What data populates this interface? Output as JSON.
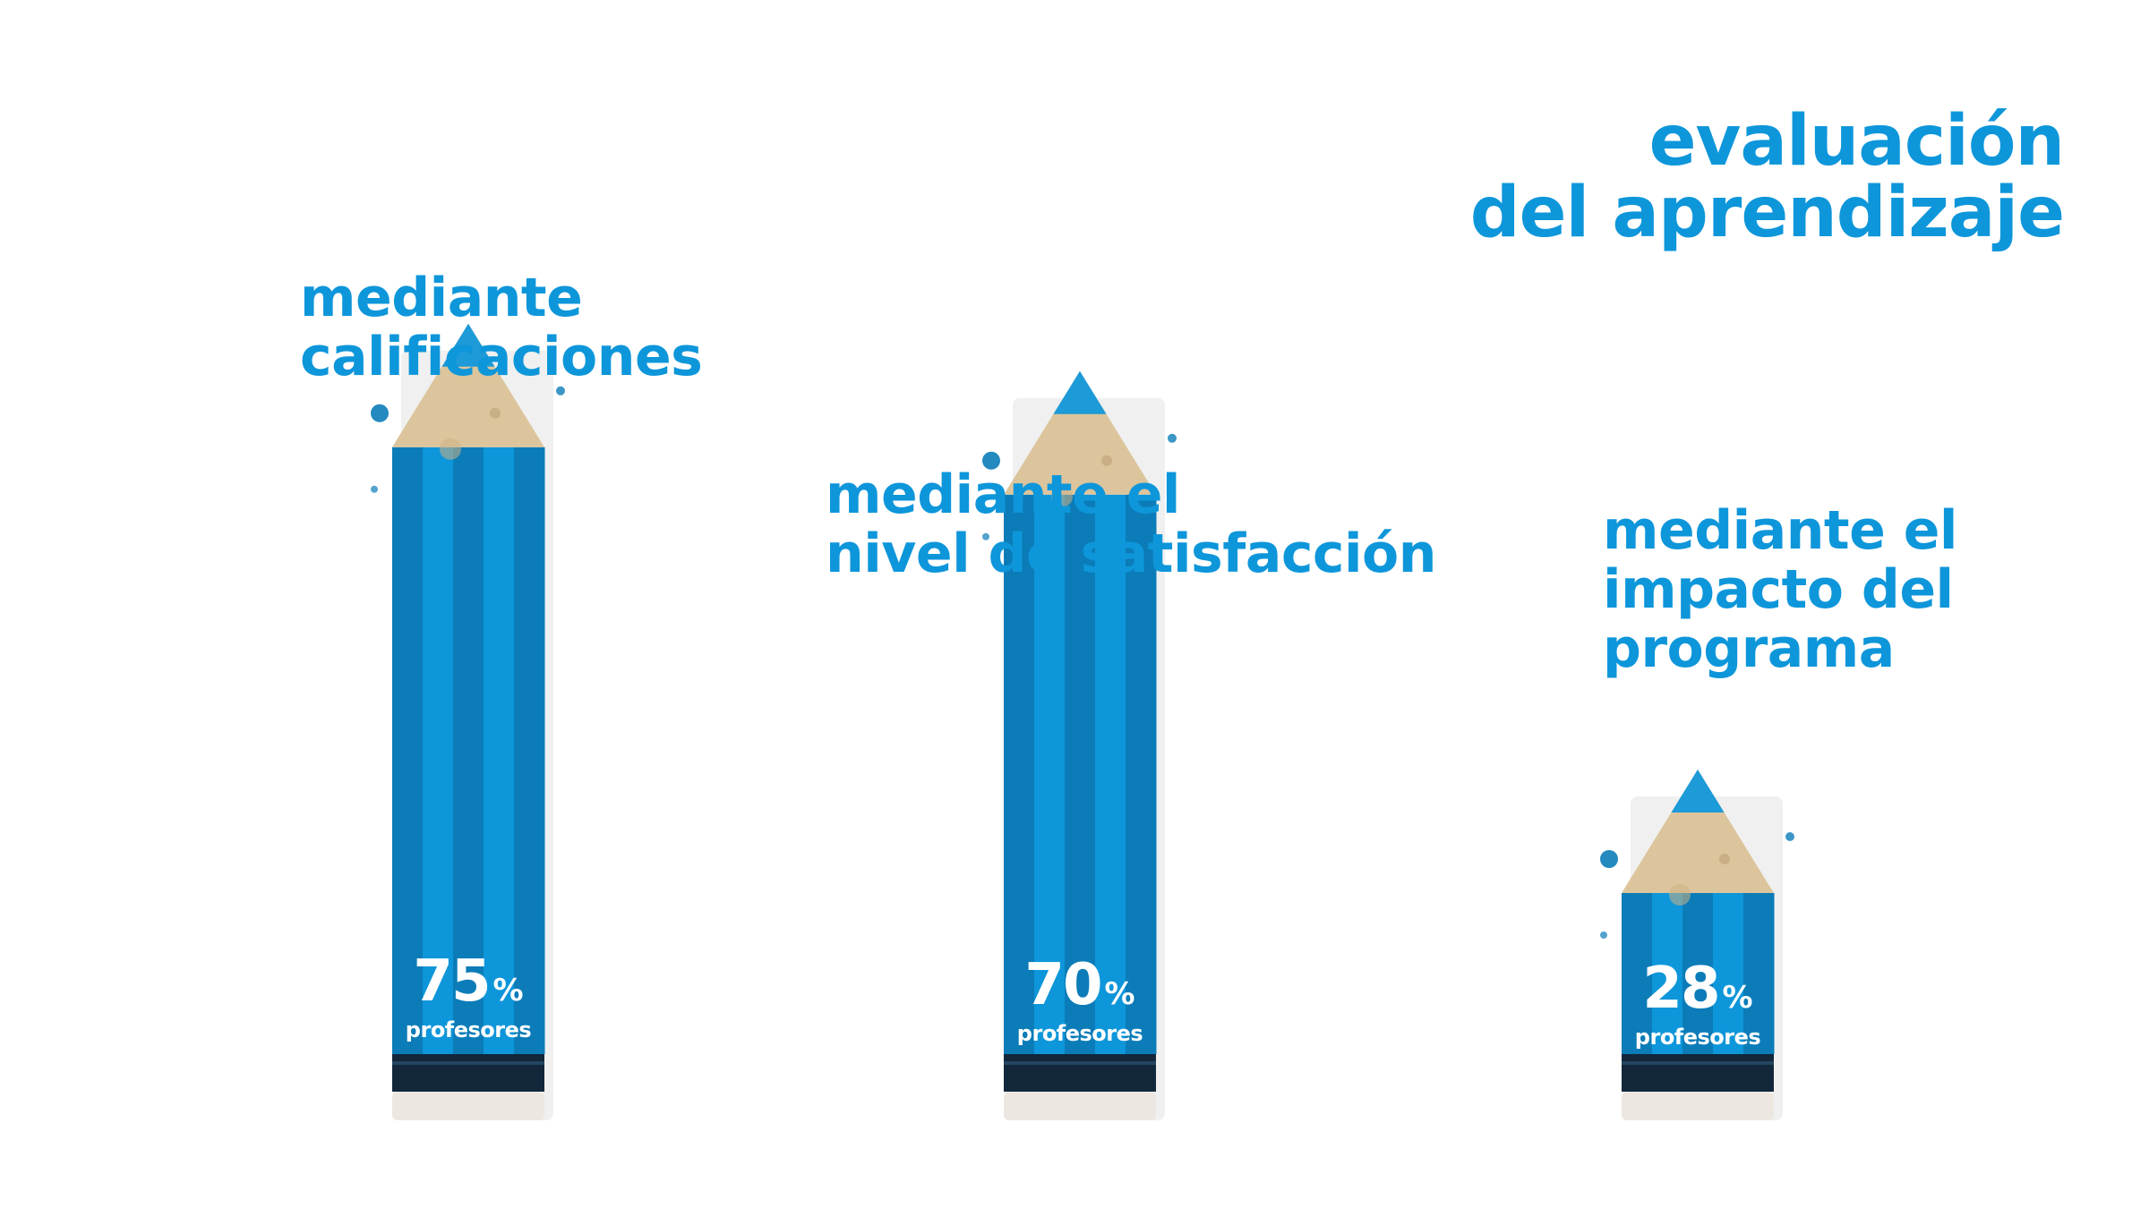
{
  "title": {
    "line1": "evaluación",
    "line2": "del aprendizaje"
  },
  "colors": {
    "accent": "#0e96da",
    "pencil_dark_stripe": "#0b7cb8",
    "pencil_light_stripe": "#0e96da",
    "pencil_tip": "#1d9ad8",
    "pencil_wood": "#dcc59c",
    "pencil_band": "#12273a",
    "pencil_eraser": "#ece8e1"
  },
  "chart_data": {
    "type": "bar",
    "title": "evaluación del aprendizaje",
    "categories": [
      "mediante calificaciones",
      "mediante el nivel de satisfacción",
      "mediante el impacto del programa"
    ],
    "series": [
      {
        "values": [
          75,
          70,
          28
        ]
      }
    ],
    "value_suffix": "%",
    "value_unit": "profesores",
    "ylim": [
      0,
      100
    ],
    "grid": false,
    "legend": "none"
  },
  "labels": [
    {
      "lines": [
        "mediante",
        "calificaciones"
      ]
    },
    {
      "lines": [
        "mediante el",
        "nivel de satisfacción"
      ]
    },
    {
      "lines": [
        "mediante el",
        "impacto del",
        "programa"
      ]
    }
  ],
  "values_text": [
    {
      "num": "75",
      "pct": "%",
      "unit": "profesores"
    },
    {
      "num": "70",
      "pct": "%",
      "unit": "profesores"
    },
    {
      "num": "28",
      "pct": "%",
      "unit": "profesores"
    }
  ]
}
